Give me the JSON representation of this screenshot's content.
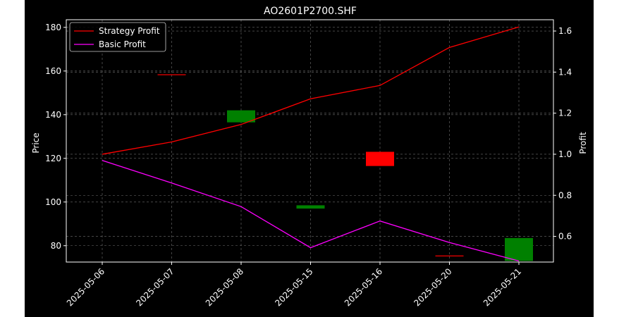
{
  "chart_data": {
    "type": "line",
    "title": "AO2601P2700.SHF",
    "xlabel": "",
    "ylabel_left": "Price",
    "ylabel_right": "Profit",
    "categories": [
      "2025-05-06",
      "2025-05-07",
      "2025-05-08",
      "2025-05-15",
      "2025-05-16",
      "2025-05-20",
      "2025-05-21"
    ],
    "ylim_left": [
      72.5,
      183.5
    ],
    "ylim_right": [
      0.475,
      1.655
    ],
    "yticks_left": [
      "80",
      "100",
      "120",
      "140",
      "160",
      "180"
    ],
    "yticks_right": [
      "0.6",
      "0.8",
      "1.0",
      "1.2",
      "1.4",
      "1.6"
    ],
    "grid": true,
    "legend_position": "top-left",
    "candles": [
      {
        "x": "2025-05-07",
        "open": 158.5,
        "close": 158.5,
        "color": "#ff0000"
      },
      {
        "x": "2025-05-08",
        "open": 136.5,
        "close": 142.0,
        "color": "#008000"
      },
      {
        "x": "2025-05-15",
        "open": 97.0,
        "close": 98.5,
        "color": "#008000"
      },
      {
        "x": "2025-05-16",
        "open": 123.0,
        "close": 116.5,
        "color": "#ff0000"
      },
      {
        "x": "2025-05-20",
        "open": 75.5,
        "close": 75.5,
        "color": "#ff0000"
      },
      {
        "x": "2025-05-21",
        "open": 73.0,
        "close": 83.5,
        "color": "#008000"
      }
    ],
    "series": [
      {
        "name": "Strategy Profit",
        "color": "#ff0000",
        "axis": "right",
        "values": [
          1.0,
          1.06,
          1.145,
          1.27,
          1.335,
          1.52,
          1.62
        ]
      },
      {
        "name": "Basic Profit",
        "color": "#ff00ff",
        "axis": "right",
        "values": [
          0.97,
          0.86,
          0.745,
          0.545,
          0.675,
          0.57,
          0.48
        ]
      }
    ]
  },
  "colors": {
    "figure_bg": "#000000",
    "axes_bg": "#000000",
    "frame": "#ffffff",
    "grid": "#bbbbbb",
    "text": "#ffffff",
    "legend_bg": "#000000",
    "legend_border": "#cccccc"
  }
}
